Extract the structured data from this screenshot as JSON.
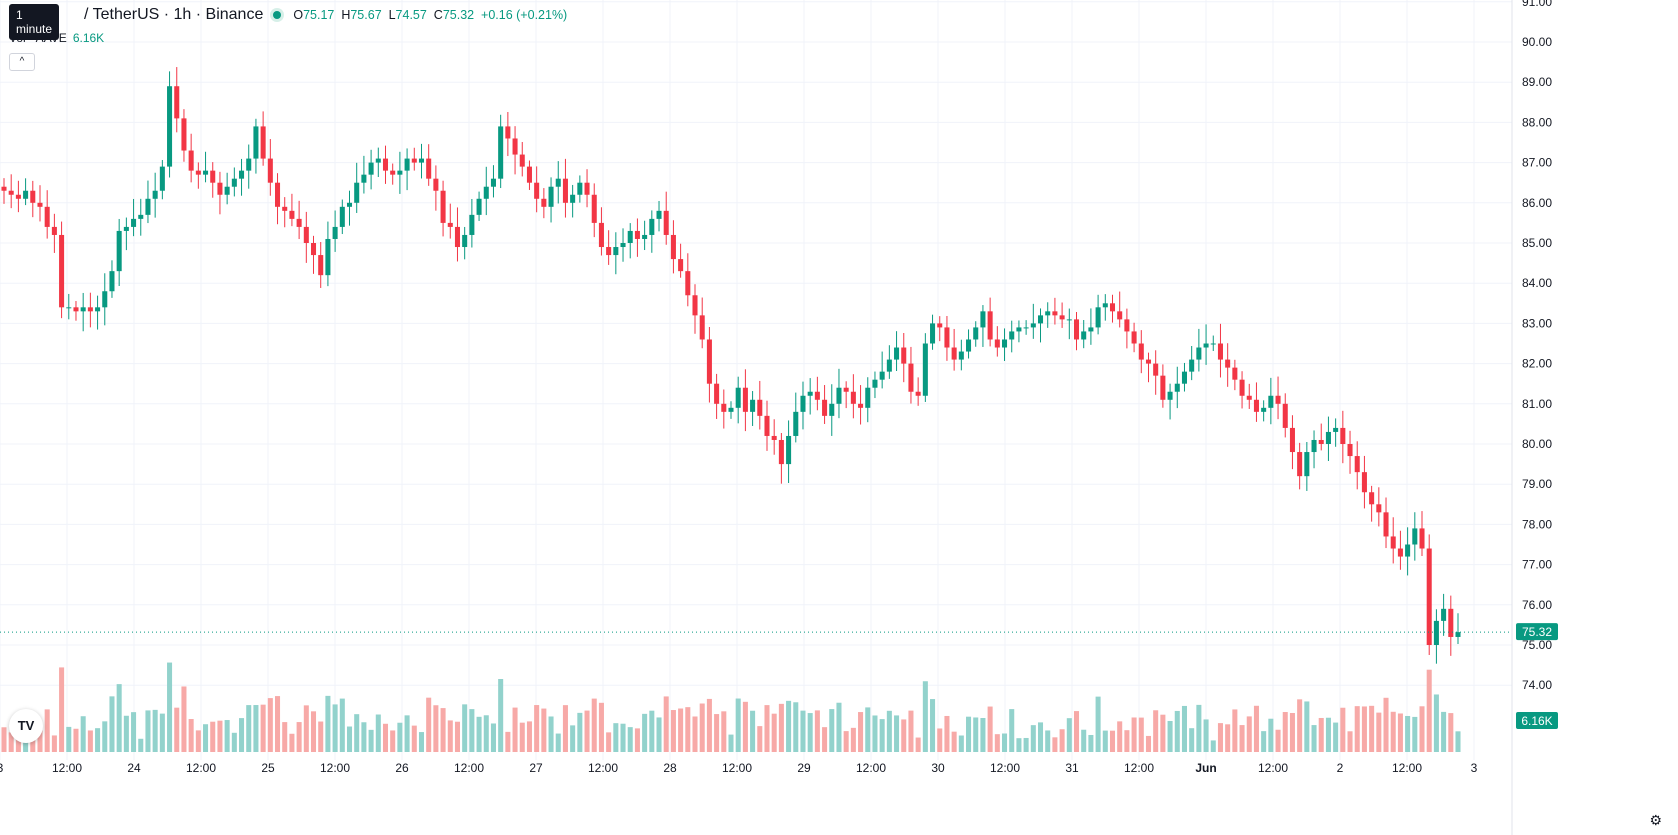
{
  "legend": {
    "tooltip": "1 minute",
    "symbol": "/ TetherUS · 1h · Binance",
    "open_label": "O",
    "open": "75.17",
    "high_label": "H",
    "high": "75.67",
    "low_label": "L",
    "low": "74.57",
    "close_label": "C",
    "close": "75.32",
    "change": "+0.16 (+0.21%)",
    "vol_label": "Vol · AAVE",
    "vol_value": "6.16K",
    "collapse_icon": "^"
  },
  "logo_text": "TV",
  "settings_icon": "gear-icon",
  "colors": {
    "up": "#089981",
    "down": "#f23645",
    "vol_up": "#92d2cc",
    "vol_down": "#f7a9a7",
    "grid": "#f0f3fa"
  },
  "chart_data": {
    "type": "candlestick",
    "interval": "1h",
    "ylim": [
      72.6,
      91.0
    ],
    "yticks": [
      "74.00",
      "75.00",
      "76.00",
      "77.00",
      "78.00",
      "79.00",
      "80.00",
      "81.00",
      "82.00",
      "83.00",
      "84.00",
      "85.00",
      "86.00",
      "87.00",
      "88.00",
      "89.00",
      "90.00",
      "91.00"
    ],
    "xticks": [
      "3",
      "12:00",
      "24",
      "12:00",
      "25",
      "12:00",
      "26",
      "12:00",
      "27",
      "12:00",
      "28",
      "12:00",
      "29",
      "12:00",
      "30",
      "12:00",
      "31",
      "12:00",
      "Jun",
      "12:00",
      "2",
      "12:00",
      "3"
    ],
    "last_price": "75.32",
    "last_volume": "6.16K",
    "close_series": [
      86.3,
      86.2,
      86.1,
      86.3,
      86.0,
      85.9,
      85.4,
      85.2,
      83.4,
      83.4,
      83.3,
      83.4,
      83.3,
      83.4,
      83.8,
      84.3,
      85.3,
      85.4,
      85.6,
      85.7,
      86.1,
      86.3,
      86.9,
      88.9,
      88.1,
      87.3,
      86.8,
      86.7,
      86.8,
      86.5,
      86.2,
      86.4,
      86.6,
      86.8,
      87.1,
      87.9,
      87.1,
      86.5,
      85.9,
      85.8,
      85.6,
      85.4,
      85.0,
      84.7,
      84.2,
      85.1,
      85.4,
      85.9,
      86.0,
      86.5,
      86.7,
      87.0,
      87.1,
      86.8,
      86.7,
      86.8,
      87.1,
      87.0,
      87.1,
      86.6,
      86.3,
      85.5,
      85.4,
      84.9,
      85.2,
      85.7,
      86.1,
      86.4,
      86.6,
      87.9,
      87.6,
      87.2,
      86.9,
      86.5,
      86.1,
      85.9,
      86.4,
      86.6,
      86.0,
      86.2,
      86.5,
      86.2,
      85.5,
      84.9,
      84.7,
      84.9,
      85.0,
      85.3,
      85.1,
      85.2,
      85.6,
      85.8,
      85.2,
      84.6,
      84.3,
      83.7,
      83.2,
      82.6,
      81.5,
      81.0,
      80.8,
      80.9,
      81.4,
      80.8,
      81.1,
      80.7,
      80.2,
      80.1,
      79.5,
      80.2,
      80.8,
      81.2,
      81.3,
      81.1,
      80.7,
      81.0,
      81.4,
      81.3,
      81.0,
      80.9,
      81.4,
      81.6,
      81.8,
      82.1,
      82.4,
      82.0,
      81.3,
      81.2,
      82.5,
      83.0,
      82.9,
      82.4,
      82.1,
      82.3,
      82.6,
      82.9,
      83.3,
      82.6,
      82.4,
      82.6,
      82.8,
      82.9,
      82.9,
      83.0,
      83.2,
      83.3,
      83.2,
      83.1,
      83.1,
      82.6,
      82.8,
      82.9,
      83.4,
      83.5,
      83.3,
      83.1,
      82.8,
      82.5,
      82.1,
      82.0,
      81.7,
      81.1,
      81.3,
      81.5,
      81.8,
      82.1,
      82.4,
      82.5,
      82.5,
      82.1,
      81.9,
      81.6,
      81.2,
      81.1,
      80.8,
      80.9,
      81.2,
      81.0,
      80.4,
      79.8,
      79.2,
      79.8,
      80.1,
      80.0,
      80.3,
      80.4,
      80.0,
      79.7,
      79.3,
      78.8,
      78.5,
      78.3,
      77.7,
      77.4,
      77.2,
      77.5,
      77.9,
      77.4,
      75.0,
      75.6,
      75.9,
      75.2,
      75.32
    ]
  }
}
